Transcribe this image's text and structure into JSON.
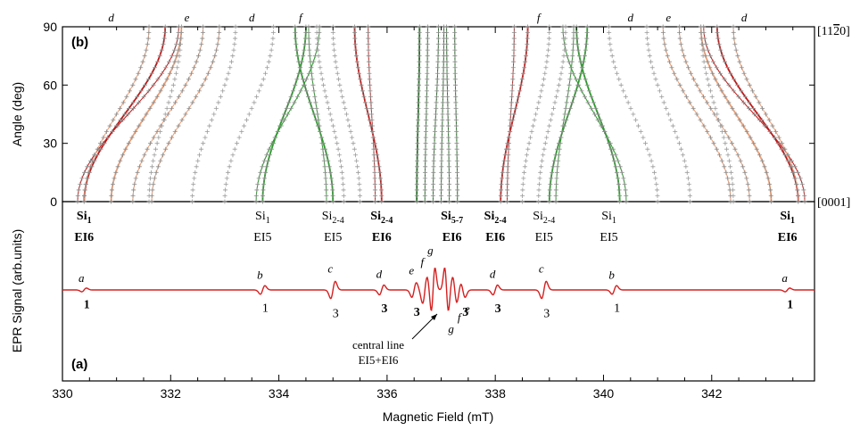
{
  "chart_data": [
    {
      "panel": "(b)",
      "type": "scatter",
      "xlabel": "",
      "ylabel": "Angle (deg)",
      "xlim": [
        330,
        343.9
      ],
      "ylim": [
        0,
        90
      ],
      "yticks": [
        0,
        30,
        60,
        90
      ],
      "orientation_labels": {
        "top": "[11̅2̅0]",
        "bottom": "[0001]"
      },
      "orientation_top_display": "[11",
      "orientation_top_bar": "2",
      "orientation_top_tail": "0]",
      "curve_letters": [
        {
          "letter": "d",
          "field": 330.9
        },
        {
          "letter": "e",
          "field": 332.3
        },
        {
          "letter": "d",
          "field": 333.5
        },
        {
          "letter": "f",
          "field": 334.4
        },
        {
          "letter": "f",
          "field": 338.8
        },
        {
          "letter": "d",
          "field": 340.5
        },
        {
          "letter": "e",
          "field": 341.2
        },
        {
          "letter": "d",
          "field": 342.6
        }
      ],
      "series": [
        {
          "name": "EI6 Si1",
          "color": "#c01818",
          "endpoints": [
            [
              330.4,
              0
            ],
            [
              331.9,
              90
            ]
          ],
          "mirror": true
        },
        {
          "name": "EI6 Si2-4",
          "color": "#c01818",
          "endpoints": [
            [
              335.9,
              0
            ],
            [
              335.4,
              90
            ]
          ],
          "mirror": true
        },
        {
          "name": "EI5 Si2-4",
          "color": "#2a9a2a",
          "endpoints": [
            [
              335.0,
              0
            ],
            [
              334.3,
              90
            ]
          ],
          "mirror": true
        },
        {
          "name": "EI5 Si1",
          "color": "#2a9a2a",
          "endpoints": [
            [
              333.7,
              0
            ],
            [
              334.5,
              90
            ]
          ],
          "mirror": true
        },
        {
          "name": "EI6 Si5-7",
          "color": "#1a6a1a",
          "endpoints": [
            [
              336.8,
              0
            ],
            [
              336.9,
              90
            ]
          ],
          "mirror": false
        },
        {
          "name": "d/e curves",
          "color": "#e8a07a",
          "endpoints": [
            [
              331.3,
              10
            ],
            [
              332.6,
              90
            ]
          ],
          "mirror": true
        }
      ],
      "site_labels": [
        {
          "site": "Si",
          "sub": "1",
          "center": "EI6",
          "field": 330.4,
          "bold": true
        },
        {
          "site": "Si",
          "sub": "1",
          "center": "EI5",
          "field": 333.7,
          "bold": false
        },
        {
          "site": "Si",
          "sub": "2-4",
          "center": "EI5",
          "field": 335.0,
          "bold": false
        },
        {
          "site": "Si",
          "sub": "2-4",
          "center": "EI6",
          "field": 335.9,
          "bold": true
        },
        {
          "site": "Si",
          "sub": "5-7",
          "center": "EI6",
          "field": 337.2,
          "bold": true
        },
        {
          "site": "Si",
          "sub": "2-4",
          "center": "EI6",
          "field": 338.0,
          "bold": true
        },
        {
          "site": "Si",
          "sub": "2-4",
          "center": "EI5",
          "field": 338.9,
          "bold": false
        },
        {
          "site": "Si",
          "sub": "1",
          "center": "EI5",
          "field": 340.1,
          "bold": false
        },
        {
          "site": "Si",
          "sub": "1",
          "center": "EI6",
          "field": 343.4,
          "bold": true
        }
      ]
    },
    {
      "panel": "(a)",
      "type": "line",
      "xlabel": "Magnetic Field (mT)",
      "ylabel": "EPR Signal (arb.units)",
      "xlim": [
        330,
        343.9
      ],
      "xticks": [
        330,
        332,
        334,
        336,
        338,
        340,
        342
      ],
      "series": [
        {
          "name": "EPR spectrum",
          "color": "#d42020"
        }
      ],
      "lines": [
        {
          "field": 330.4,
          "amp": 3,
          "letter": "a",
          "intensity": "1",
          "bold": true
        },
        {
          "field": 333.7,
          "amp": 7,
          "letter": "b",
          "intensity": "1",
          "bold": false
        },
        {
          "field": 335.0,
          "amp": 14,
          "letter": "c",
          "intensity": "3",
          "bold": false
        },
        {
          "field": 335.9,
          "amp": 8,
          "letter": "d",
          "intensity": "3",
          "bold": true
        },
        {
          "field": 336.5,
          "amp": 12,
          "letter": "e",
          "intensity": "3",
          "bold": true
        },
        {
          "field": 336.7,
          "amp": 22,
          "letter": "f",
          "intensity": "",
          "bold": false
        },
        {
          "field": 336.85,
          "amp": 36,
          "letter": "g",
          "intensity": "",
          "bold": false
        },
        {
          "field": 337.1,
          "amp": -36,
          "letter": "g",
          "intensity": "",
          "bold": false
        },
        {
          "field": 337.25,
          "amp": -22,
          "letter": "f",
          "intensity": "",
          "bold": false
        },
        {
          "field": 337.4,
          "amp": -12,
          "letter": "e",
          "intensity": "3",
          "bold": true
        },
        {
          "field": 338.0,
          "amp": 8,
          "letter": "d",
          "intensity": "3",
          "bold": true
        },
        {
          "field": 338.9,
          "amp": 14,
          "letter": "c",
          "intensity": "3",
          "bold": false
        },
        {
          "field": 340.2,
          "amp": 7,
          "letter": "b",
          "intensity": "1",
          "bold": false
        },
        {
          "field": 343.4,
          "amp": 3,
          "letter": "a",
          "intensity": "1",
          "bold": true
        }
      ],
      "annotation": {
        "line1": "central line",
        "line2": "EI5+EI6",
        "field": 336.9
      }
    }
  ],
  "panel_labels": {
    "b": "(b)",
    "a": "(a)"
  }
}
